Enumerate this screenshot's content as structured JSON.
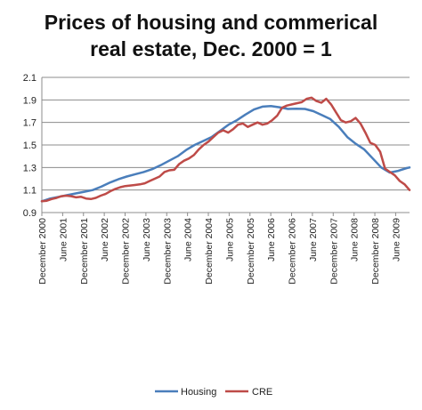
{
  "chart_data": {
    "type": "line",
    "title_lines": [
      "Prices of housing and commerical",
      "real estate, Dec. 2000 = 1"
    ],
    "xlabel": "",
    "ylabel": "",
    "ylim": [
      0.9,
      2.1
    ],
    "yticks": [
      "0.9",
      "1.1",
      "1.3",
      "1.5",
      "1.7",
      "1.9",
      "2.1"
    ],
    "grid": "horizontal",
    "legend_position": "bottom",
    "x_tick_labels": [
      "December 2000",
      "June 2001",
      "December 2001",
      "June 2002",
      "December 2002",
      "June 2003",
      "December 2003",
      "June 2004",
      "December 2004",
      "June 2005",
      "December 2005",
      "June 2006",
      "December 2006",
      "June 2007",
      "December 2007",
      "June 2008",
      "December 2008",
      "June 2009"
    ],
    "x_tick_months": [
      0,
      6,
      12,
      18,
      24,
      30,
      36,
      42,
      48,
      54,
      60,
      66,
      72,
      78,
      84,
      90,
      96,
      102
    ],
    "x_range_months": [
      0,
      106
    ],
    "series": [
      {
        "name": "Housing",
        "color": "#4A7EBB",
        "points": [
          [
            0,
            1.0
          ],
          [
            3,
            1.025
          ],
          [
            6,
            1.04
          ],
          [
            9,
            1.055
          ],
          [
            12,
            1.07
          ],
          [
            15,
            1.085
          ],
          [
            18,
            1.1
          ],
          [
            21,
            1.13
          ],
          [
            24,
            1.165
          ],
          [
            27,
            1.195
          ],
          [
            30,
            1.22
          ],
          [
            33,
            1.24
          ],
          [
            36,
            1.26
          ],
          [
            39,
            1.285
          ],
          [
            42,
            1.32
          ],
          [
            45,
            1.36
          ],
          [
            48,
            1.4
          ],
          [
            51,
            1.455
          ],
          [
            54,
            1.5
          ],
          [
            57,
            1.535
          ],
          [
            60,
            1.57
          ],
          [
            63,
            1.625
          ],
          [
            66,
            1.68
          ],
          [
            69,
            1.72
          ],
          [
            72,
            1.77
          ],
          [
            75,
            1.815
          ],
          [
            78,
            1.84
          ],
          [
            81,
            1.845
          ],
          [
            84,
            1.835
          ],
          [
            87,
            1.82
          ],
          [
            90,
            1.822
          ],
          [
            93,
            1.82
          ],
          [
            96,
            1.8
          ],
          [
            99,
            1.765
          ],
          [
            102,
            1.73
          ],
          [
            105,
            1.66
          ],
          [
            108,
            1.57
          ],
          [
            111,
            1.51
          ],
          [
            114,
            1.46
          ],
          [
            117,
            1.38
          ],
          [
            120,
            1.3
          ],
          [
            123,
            1.255
          ],
          [
            126,
            1.27
          ],
          [
            129,
            1.295
          ],
          [
            130,
            1.3
          ]
        ]
      },
      {
        "name": "CRE",
        "color": "#BE4B48",
        "points": [
          [
            0,
            1.0
          ],
          [
            2,
            1.005
          ],
          [
            4,
            1.02
          ],
          [
            6,
            1.03
          ],
          [
            8,
            1.045
          ],
          [
            10,
            1.05
          ],
          [
            12,
            1.045
          ],
          [
            14,
            1.035
          ],
          [
            16,
            1.04
          ],
          [
            18,
            1.025
          ],
          [
            20,
            1.02
          ],
          [
            22,
            1.03
          ],
          [
            24,
            1.05
          ],
          [
            26,
            1.065
          ],
          [
            28,
            1.09
          ],
          [
            30,
            1.11
          ],
          [
            32,
            1.125
          ],
          [
            34,
            1.135
          ],
          [
            36,
            1.14
          ],
          [
            38,
            1.145
          ],
          [
            40,
            1.15
          ],
          [
            42,
            1.16
          ],
          [
            44,
            1.18
          ],
          [
            46,
            1.2
          ],
          [
            48,
            1.22
          ],
          [
            50,
            1.26
          ],
          [
            52,
            1.275
          ],
          [
            54,
            1.28
          ],
          [
            56,
            1.33
          ],
          [
            58,
            1.36
          ],
          [
            60,
            1.38
          ],
          [
            62,
            1.41
          ],
          [
            64,
            1.46
          ],
          [
            66,
            1.5
          ],
          [
            68,
            1.53
          ],
          [
            70,
            1.57
          ],
          [
            72,
            1.61
          ],
          [
            74,
            1.63
          ],
          [
            76,
            1.61
          ],
          [
            78,
            1.64
          ],
          [
            80,
            1.68
          ],
          [
            82,
            1.69
          ],
          [
            84,
            1.66
          ],
          [
            86,
            1.68
          ],
          [
            88,
            1.7
          ],
          [
            90,
            1.68
          ],
          [
            92,
            1.69
          ],
          [
            94,
            1.72
          ],
          [
            96,
            1.76
          ],
          [
            98,
            1.83
          ],
          [
            100,
            1.85
          ],
          [
            102,
            1.86
          ],
          [
            104,
            1.87
          ],
          [
            106,
            1.88
          ],
          [
            108,
            1.91
          ],
          [
            110,
            1.92
          ],
          [
            112,
            1.89
          ],
          [
            114,
            1.875
          ],
          [
            116,
            1.91
          ],
          [
            118,
            1.86
          ],
          [
            120,
            1.79
          ],
          [
            122,
            1.72
          ],
          [
            124,
            1.7
          ],
          [
            126,
            1.71
          ],
          [
            128,
            1.74
          ],
          [
            130,
            1.69
          ],
          [
            132,
            1.61
          ],
          [
            134,
            1.52
          ],
          [
            136,
            1.5
          ],
          [
            138,
            1.44
          ],
          [
            140,
            1.29
          ],
          [
            142,
            1.26
          ],
          [
            144,
            1.23
          ],
          [
            146,
            1.18
          ],
          [
            148,
            1.15
          ],
          [
            150,
            1.1
          ]
        ]
      }
    ]
  }
}
